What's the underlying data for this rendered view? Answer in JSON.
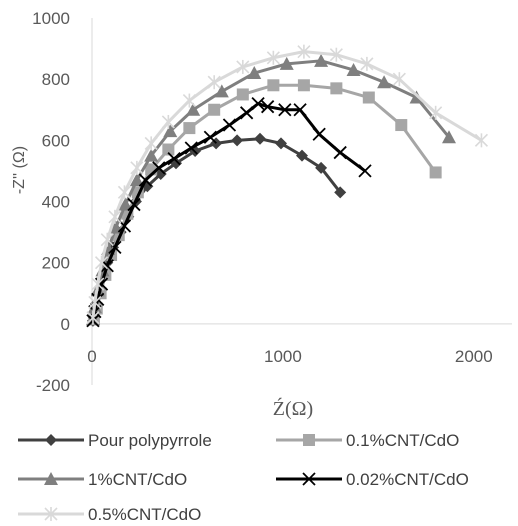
{
  "chart_data": {
    "type": "scatter",
    "title": "",
    "xlabel": "Ź(Ω)",
    "ylabel": "-Z'' (Ω)",
    "xlim": [
      0,
      2200
    ],
    "ylim": [
      -200,
      1000
    ],
    "x_ticks": [
      "0",
      "1000",
      "2000"
    ],
    "y_ticks": [
      "-200",
      "0",
      "200",
      "400",
      "600",
      "800",
      "1000"
    ],
    "legend": "bottom",
    "grid": false,
    "series": [
      {
        "name": "Pour polypyrrole",
        "color": "#404040",
        "marker": "diamond",
        "x": [
          5,
          10,
          20,
          35,
          55,
          80,
          110,
          150,
          190,
          230,
          290,
          360,
          440,
          540,
          650,
          760,
          880,
          990,
          1100,
          1200,
          1300
        ],
        "y": [
          10,
          35,
          65,
          100,
          150,
          200,
          250,
          300,
          350,
          400,
          450,
          490,
          525,
          565,
          590,
          600,
          605,
          590,
          550,
          510,
          430
        ]
      },
      {
        "name": "0.1%CNT/CdO",
        "color": "#a6a6a6",
        "marker": "square",
        "x": [
          10,
          25,
          45,
          70,
          100,
          140,
          185,
          240,
          310,
          400,
          510,
          640,
          790,
          950,
          1110,
          1280,
          1450,
          1620,
          1800
        ],
        "y": [
          15,
          50,
          100,
          160,
          225,
          290,
          360,
          430,
          505,
          570,
          640,
          700,
          750,
          780,
          780,
          770,
          740,
          650,
          495
        ]
      },
      {
        "name": "1%CNT/CdO",
        "color": "#7f7f7f",
        "marker": "triangle",
        "x": [
          5,
          15,
          30,
          55,
          85,
          125,
          175,
          235,
          310,
          410,
          530,
          680,
          850,
          1020,
          1200,
          1370,
          1530,
          1700,
          1870
        ],
        "y": [
          15,
          55,
          110,
          175,
          245,
          315,
          390,
          470,
          550,
          630,
          700,
          760,
          820,
          850,
          860,
          830,
          790,
          740,
          610
        ]
      },
      {
        "name": "0.02%CNT/CdO",
        "color": "#000000",
        "marker": "x",
        "x": [
          5,
          15,
          30,
          50,
          80,
          120,
          170,
          220,
          280,
          350,
          430,
          520,
          620,
          720,
          810,
          870,
          920,
          1010,
          1090,
          1190,
          1300,
          1430
        ],
        "y": [
          10,
          40,
          80,
          130,
          190,
          250,
          320,
          390,
          470,
          510,
          540,
          575,
          610,
          650,
          690,
          720,
          710,
          700,
          700,
          620,
          560,
          500
        ]
      },
      {
        "name": "0.5%CNT/CdO",
        "color": "#d9d9d9",
        "marker": "star",
        "x": [
          5,
          15,
          30,
          50,
          80,
          120,
          170,
          235,
          310,
          400,
          510,
          640,
          790,
          950,
          1110,
          1280,
          1440,
          1610,
          1800,
          2040
        ],
        "y": [
          20,
          70,
          130,
          200,
          275,
          350,
          430,
          510,
          590,
          660,
          730,
          790,
          840,
          870,
          890,
          880,
          850,
          800,
          690,
          600
        ]
      }
    ]
  }
}
